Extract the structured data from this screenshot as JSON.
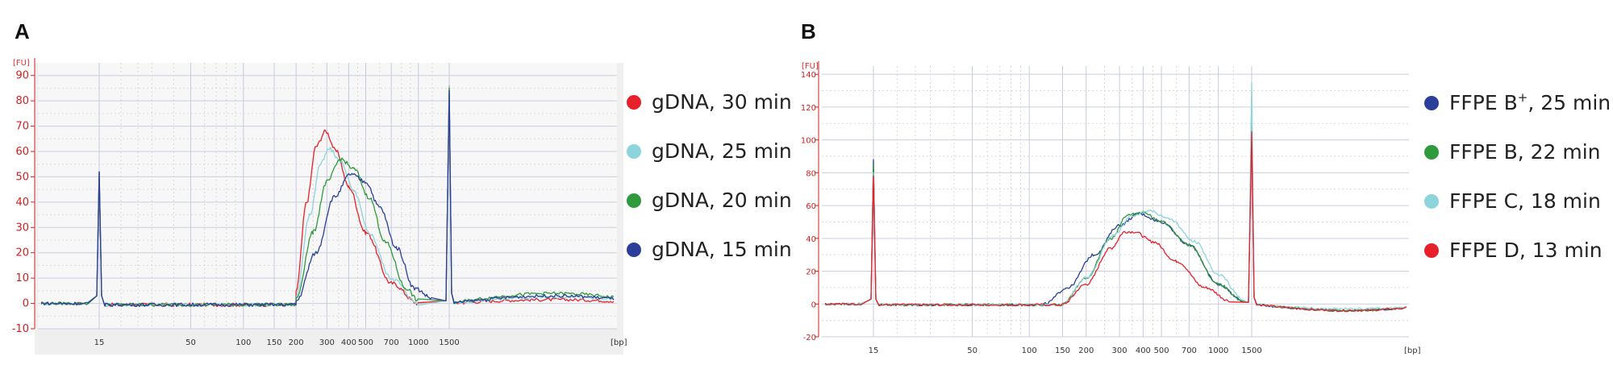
{
  "figure": {
    "panel_a_label": "A",
    "panel_b_label": "B"
  },
  "colors": {
    "red": "#e8202a",
    "cyan": "#8dd4dc",
    "green": "#2f9a3c",
    "blue": "#2b3f9a"
  },
  "chart_data": [
    {
      "type": "line",
      "panel": "A",
      "ylabel": "[FU]",
      "xlabel": "[bp]",
      "ylim": [
        -10,
        95
      ],
      "yticks": [
        -10,
        0,
        10,
        20,
        30,
        40,
        50,
        60,
        70,
        80,
        90
      ],
      "xticks": [
        "15",
        "50",
        "100",
        "150",
        "200",
        "300",
        "400",
        "500",
        "700",
        "1000",
        "1500"
      ],
      "xtick_values": [
        15,
        50,
        100,
        150,
        200,
        300,
        400,
        500,
        700,
        1000,
        1500
      ],
      "legend_position": "right",
      "series": [
        {
          "name": "gDNA, 30 min",
          "color_key": "red",
          "end_level": 1.5,
          "points": [
            [
              15,
              52
            ],
            [
              200,
              5
            ],
            [
              230,
              40
            ],
            [
              260,
              62
            ],
            [
              295,
              68
            ],
            [
              340,
              60
            ],
            [
              400,
              46
            ],
            [
              500,
              28
            ],
            [
              700,
              8
            ],
            [
              1000,
              0
            ],
            [
              1500,
              86
            ]
          ]
        },
        {
          "name": "gDNA, 25 min",
          "color_key": "cyan",
          "end_level": 2.5,
          "points": [
            [
              15,
              52
            ],
            [
              200,
              3
            ],
            [
              240,
              35
            ],
            [
              275,
              55
            ],
            [
              310,
              61
            ],
            [
              360,
              56
            ],
            [
              430,
              44
            ],
            [
              520,
              28
            ],
            [
              700,
              10
            ],
            [
              1000,
              0
            ],
            [
              1500,
              86
            ]
          ]
        },
        {
          "name": "gDNA, 20 min",
          "color_key": "green",
          "end_level": 4,
          "points": [
            [
              15,
              52
            ],
            [
              200,
              2
            ],
            [
              250,
              28
            ],
            [
              300,
              48
            ],
            [
              360,
              57
            ],
            [
              430,
              53
            ],
            [
              520,
              42
            ],
            [
              650,
              24
            ],
            [
              850,
              6
            ],
            [
              1000,
              1
            ],
            [
              1500,
              85
            ]
          ]
        },
        {
          "name": "gDNA, 15 min",
          "color_key": "blue",
          "end_level": 3,
          "points": [
            [
              15,
              52
            ],
            [
              200,
              1
            ],
            [
              260,
              20
            ],
            [
              330,
              42
            ],
            [
              410,
              51
            ],
            [
              500,
              48
            ],
            [
              600,
              38
            ],
            [
              750,
              22
            ],
            [
              950,
              6
            ],
            [
              1200,
              2
            ],
            [
              1500,
              84
            ]
          ]
        }
      ]
    },
    {
      "type": "line",
      "panel": "B",
      "ylabel": "[FU]",
      "xlabel": "[bp]",
      "ylim": [
        -20,
        145
      ],
      "yticks": [
        -20,
        0,
        20,
        40,
        60,
        80,
        100,
        120,
        140
      ],
      "xticks": [
        "15",
        "50",
        "100",
        "150",
        "200",
        "300",
        "400",
        "500",
        "700",
        "1000",
        "1500"
      ],
      "xtick_values": [
        15,
        50,
        100,
        150,
        200,
        300,
        400,
        500,
        700,
        1000,
        1500
      ],
      "legend_position": "right",
      "series": [
        {
          "name": "FFPE B",
          "sup": "+",
          "suffix": ", 25 min",
          "color_key": "blue",
          "end_level": -4,
          "points": [
            [
              15,
              88
            ],
            [
              120,
              0
            ],
            [
              160,
              10
            ],
            [
              220,
              30
            ],
            [
              300,
              48
            ],
            [
              380,
              55
            ],
            [
              500,
              50
            ],
            [
              700,
              36
            ],
            [
              1000,
              12
            ],
            [
              1350,
              2
            ],
            [
              1500,
              108
            ]
          ]
        },
        {
          "name": "FFPE B, 22 min",
          "sup": "",
          "suffix": "",
          "color_key": "green",
          "end_level": -4,
          "points": [
            [
              15,
              85
            ],
            [
              150,
              0
            ],
            [
              200,
              16
            ],
            [
              270,
              40
            ],
            [
              330,
              54
            ],
            [
              400,
              56
            ],
            [
              500,
              50
            ],
            [
              700,
              36
            ],
            [
              1000,
              12
            ],
            [
              1350,
              2
            ],
            [
              1500,
              110
            ]
          ]
        },
        {
          "name": "FFPE C, 18 min",
          "sup": "",
          "suffix": "",
          "color_key": "cyan",
          "end_level": -3,
          "points": [
            [
              15,
              80
            ],
            [
              150,
              0
            ],
            [
              200,
              16
            ],
            [
              280,
              42
            ],
            [
              350,
              54
            ],
            [
              430,
              57
            ],
            [
              550,
              52
            ],
            [
              750,
              38
            ],
            [
              1000,
              18
            ],
            [
              1350,
              3
            ],
            [
              1500,
              135
            ]
          ]
        },
        {
          "name": "FFPE D, 13 min",
          "sup": "",
          "suffix": "",
          "color_key": "red",
          "end_level": -4,
          "points": [
            [
              15,
              78
            ],
            [
              150,
              0
            ],
            [
              200,
              12
            ],
            [
              270,
              34
            ],
            [
              320,
              44
            ],
            [
              360,
              44
            ],
            [
              450,
              38
            ],
            [
              600,
              26
            ],
            [
              850,
              10
            ],
            [
              1150,
              2
            ],
            [
              1500,
              105
            ]
          ]
        }
      ]
    }
  ]
}
